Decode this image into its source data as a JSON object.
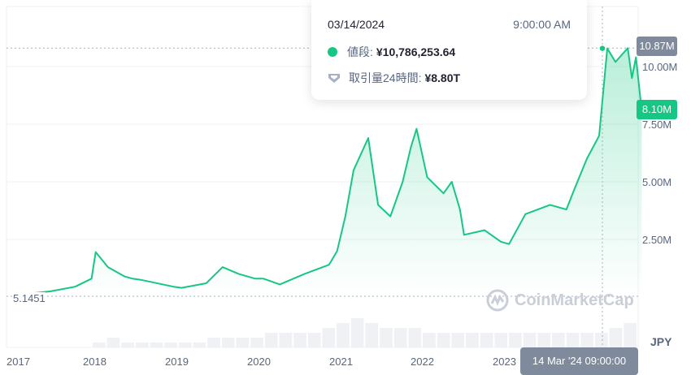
{
  "chart_data": {
    "type": "area",
    "currency": "JPY",
    "x_ticks": [
      "2017",
      "2018",
      "2019",
      "2020",
      "2021",
      "2022",
      "2023"
    ],
    "y_ticks": [
      "2.50M",
      "5.00M",
      "7.50M",
      "10.00M"
    ],
    "ylim": [
      0,
      12.8
    ],
    "y_unit": "M JPY",
    "grid": true,
    "line_color": "#16c784",
    "series": [
      {
        "x": [
          2017.0,
          2017.4,
          2017.7,
          2017.9,
          2017.95,
          2018.1,
          2018.3,
          2018.4,
          2018.5,
          2018.9,
          2019.0,
          2019.3,
          2019.5,
          2019.7,
          2019.9,
          2020.0,
          2020.2,
          2020.5,
          2020.8,
          2020.9,
          2021.0,
          2021.1,
          2021.28,
          2021.4,
          2021.55,
          2021.7,
          2021.8,
          2021.87,
          2022.0,
          2022.2,
          2022.3,
          2022.4,
          2022.45,
          2022.7,
          2022.9,
          2023.0,
          2023.2,
          2023.5,
          2023.7,
          2023.8,
          2023.95,
          2024.1,
          2024.2,
          2024.3,
          2024.45,
          2024.5,
          2024.55,
          2024.62
        ],
        "y": [
          0.1,
          0.25,
          0.45,
          0.8,
          1.95,
          1.3,
          0.9,
          0.8,
          0.75,
          0.45,
          0.4,
          0.6,
          1.3,
          1.0,
          0.8,
          0.8,
          0.55,
          1.0,
          1.4,
          2.0,
          3.5,
          5.5,
          6.9,
          4.0,
          3.5,
          5.0,
          6.5,
          7.3,
          5.2,
          4.5,
          5.0,
          3.8,
          2.7,
          2.9,
          2.4,
          2.3,
          3.6,
          4.0,
          3.8,
          4.7,
          6.0,
          7.0,
          10.79,
          10.2,
          10.8,
          9.5,
          10.4,
          8.1
        ]
      }
    ],
    "volume": [
      0,
      0,
      0,
      0,
      0,
      0,
      1,
      2,
      1,
      1,
      1,
      1,
      1,
      1,
      2,
      2,
      2,
      2,
      3,
      3,
      3,
      3,
      4,
      5,
      6,
      5,
      4,
      4,
      4,
      3,
      3,
      3,
      3,
      3,
      3,
      3,
      3,
      3,
      3,
      3,
      3,
      3,
      4,
      5
    ],
    "baseline_label": "5.1451",
    "high_label": "10.87M",
    "current_label": "8.10M",
    "crosshair_label": "14 Mar '24 09:00:00",
    "axis_unit_label": "JPY"
  },
  "tooltip": {
    "date": "03/14/2024",
    "time": "9:00:00 AM",
    "price_label": "値段:",
    "price_value": "¥10,786,253.64",
    "volume_label": "取引量24時間:",
    "volume_value": "¥8.80T"
  },
  "watermark": "CoinMarketCap"
}
